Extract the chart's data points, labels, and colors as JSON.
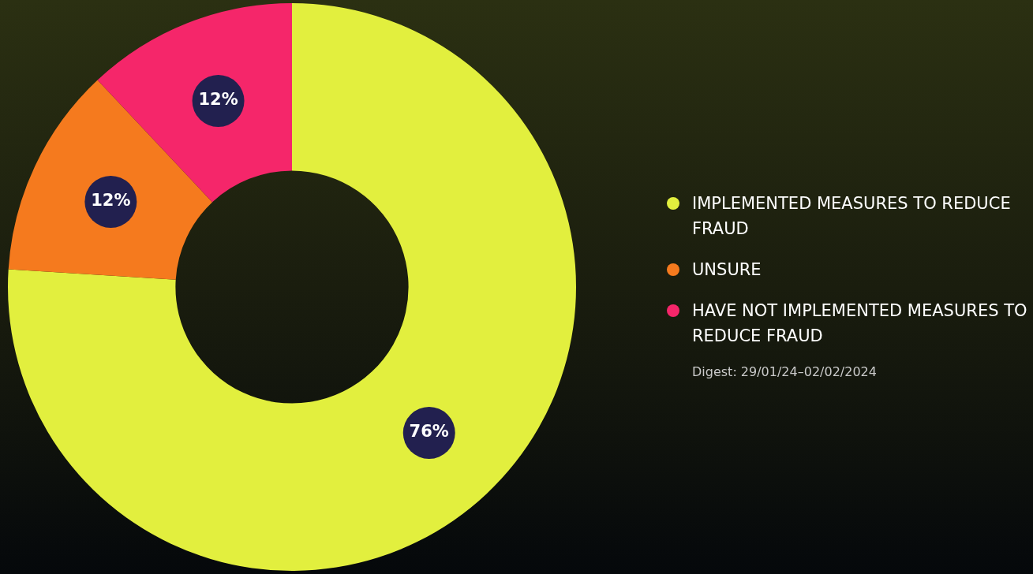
{
  "chart_data": {
    "type": "donut",
    "categories": [
      "IMPLEMENTED MEASURES TO REDUCE FRAUD",
      "UNSURE",
      "HAVE NOT IMPLEMENTED MEASURES TO REDUCE FRAUD"
    ],
    "values": [
      76,
      12,
      12
    ],
    "colors": [
      "#e2ef3e",
      "#f57a1e",
      "#f5266a"
    ],
    "value_labels": [
      "76%",
      "12%",
      "12%"
    ],
    "legend": "right",
    "annotations": [
      "Digest: 29/01/24–02/02/2024"
    ]
  }
}
